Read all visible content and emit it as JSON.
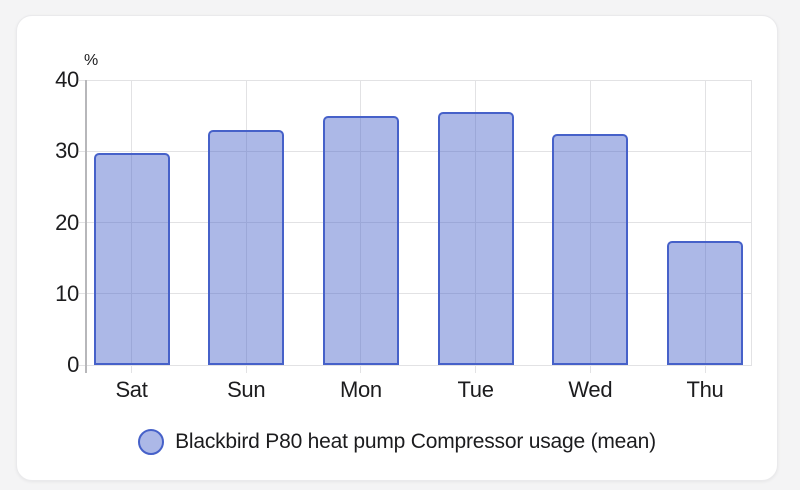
{
  "chart_data": {
    "type": "bar",
    "categories": [
      "Sat",
      "Sun",
      "Mon",
      "Tue",
      "Wed",
      "Thu"
    ],
    "series": [
      {
        "name": "Blackbird P80 heat pump Compressor usage (mean)",
        "values": [
          29.7,
          33.0,
          34.9,
          35.5,
          32.4,
          17.4
        ]
      }
    ],
    "title": "",
    "xlabel": "",
    "ylabel": "%",
    "ylim": [
      0,
      40
    ],
    "yticks": [
      0,
      10,
      20,
      30,
      40
    ],
    "grid": true,
    "legend_position": "bottom",
    "colors": {
      "bar_border": "#4661c9",
      "bar_fill": "rgba(70,97,201,0.45)",
      "gridline": "#e2e2e4",
      "axis_line": "#b7b7ba"
    }
  }
}
